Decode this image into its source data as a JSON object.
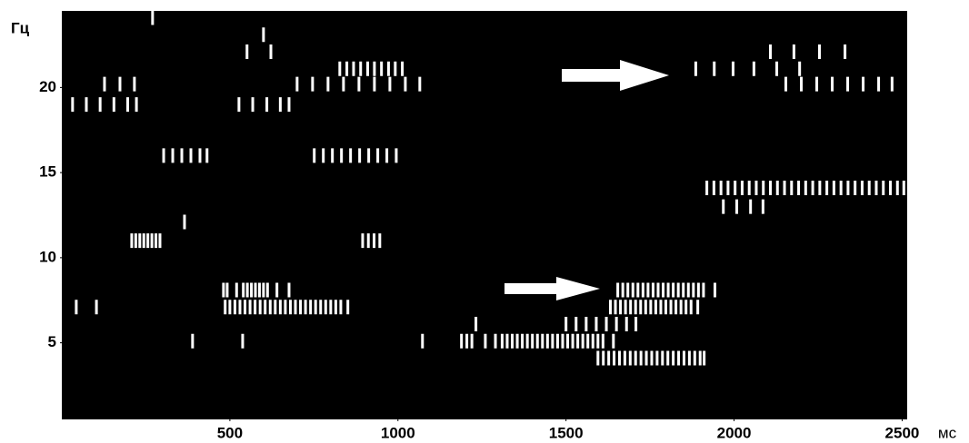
{
  "chart_data": {
    "type": "raster",
    "y_label": "Гц",
    "x_label": "мс",
    "xlim": [
      0,
      2515
    ],
    "ylim": [
      0.5,
      24.5
    ],
    "xticks": [
      500,
      1000,
      1500,
      2000,
      2500
    ],
    "yticks": [
      5,
      10,
      15,
      20
    ],
    "background": "#000000",
    "color": "#ffffff",
    "rows": [
      {
        "frequency": 24.1,
        "x": [
          270
        ]
      },
      {
        "frequency": 23.1,
        "x": [
          600
        ]
      },
      {
        "frequency": 22.1,
        "x": [
          551,
          622,
          2108,
          2178,
          2254,
          2330
        ]
      },
      {
        "frequency": 21.1,
        "x": [
          827,
          848,
          868,
          889,
          910,
          930,
          951,
          972,
          992,
          1013,
          1886,
          1941,
          1997,
          2059,
          2127,
          2195
        ]
      },
      {
        "frequency": 20.2,
        "x": [
          127,
          173,
          216,
          700,
          746,
          792,
          838,
          884,
          930,
          976,
          1022,
          1065,
          2154,
          2200,
          2246,
          2292,
          2338,
          2384,
          2430,
          2470
        ]
      },
      {
        "frequency": 19.0,
        "x": [
          32,
          73,
          114,
          155,
          196,
          222,
          527,
          568,
          610,
          650,
          676
        ]
      },
      {
        "frequency": 16.0,
        "x": [
          303,
          330,
          357,
          384,
          411,
          432,
          751,
          778,
          805,
          832,
          859,
          886,
          913,
          940,
          967,
          995
        ]
      },
      {
        "frequency": 14.1,
        "x": [
          1919,
          1940,
          1961,
          1982,
          2003,
          2024,
          2045,
          2066,
          2087,
          2108,
          2129,
          2150,
          2171,
          2192,
          2213,
          2234,
          2255,
          2276,
          2297,
          2318,
          2339,
          2360,
          2381,
          2402,
          2423,
          2444,
          2465,
          2486,
          2505
        ]
      },
      {
        "frequency": 13.0,
        "x": [
          1968,
          2008,
          2049,
          2086
        ]
      },
      {
        "frequency": 12.1,
        "x": [
          365
        ]
      },
      {
        "frequency": 11.0,
        "x": [
          208,
          220,
          232,
          244,
          256,
          268,
          280,
          292,
          895,
          912,
          929,
          946
        ]
      },
      {
        "frequency": 8.1,
        "x": [
          481,
          492,
          520,
          540,
          552,
          564,
          576,
          588,
          600,
          612,
          640,
          676,
          1654,
          1669,
          1684,
          1699,
          1714,
          1729,
          1744,
          1759,
          1774,
          1789,
          1804,
          1819,
          1834,
          1849,
          1864,
          1879,
          1894,
          1909,
          1943
        ]
      },
      {
        "frequency": 7.1,
        "x": [
          43,
          103,
          486,
          500,
          515,
          530,
          545,
          560,
          575,
          590,
          605,
          620,
          635,
          650,
          665,
          680,
          695,
          710,
          725,
          740,
          755,
          770,
          785,
          800,
          815,
          830,
          851,
          1632,
          1647,
          1662,
          1677,
          1692,
          1707,
          1722,
          1737,
          1752,
          1767,
          1782,
          1797,
          1812,
          1827,
          1842,
          1857,
          1872,
          1892
        ]
      },
      {
        "frequency": 6.1,
        "x": [
          1232,
          1500,
          1530,
          1560,
          1590,
          1620,
          1650,
          1680,
          1708
        ]
      },
      {
        "frequency": 5.1,
        "x": [
          389,
          538,
          1073,
          1189,
          1205,
          1220,
          1260,
          1290,
          1310,
          1325,
          1340,
          1355,
          1370,
          1385,
          1400,
          1415,
          1430,
          1445,
          1460,
          1475,
          1490,
          1505,
          1520,
          1535,
          1550,
          1565,
          1580,
          1595,
          1610,
          1641
        ]
      },
      {
        "frequency": 4.1,
        "x": [
          1595,
          1611,
          1627,
          1643,
          1659,
          1675,
          1691,
          1707,
          1723,
          1739,
          1755,
          1771,
          1787,
          1803,
          1819,
          1835,
          1851,
          1867,
          1883,
          1899,
          1911
        ]
      }
    ]
  }
}
